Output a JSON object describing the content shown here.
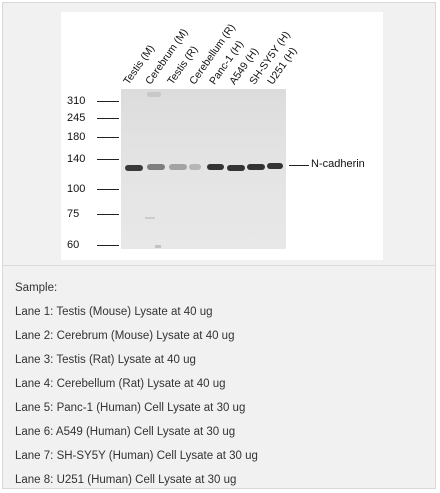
{
  "blot": {
    "lanes": [
      "Testis (M)",
      "Cerebrum (M)",
      "Testis (R)",
      "Cerebellum (R)",
      "Panc-1 (H)",
      "A549 (H)",
      "SH-SY5Y (H)",
      "U251 (H)"
    ],
    "markers": [
      "310",
      "245",
      "180",
      "140",
      "100",
      "75",
      "60"
    ],
    "target_label": "N-cadherin"
  },
  "caption": {
    "heading": "Sample:",
    "lines": [
      "Lane 1: Testis (Mouse) Lysate at 40 ug",
      "Lane 2: Cerebrum (Mouse) Lysate at 40 ug",
      "Lane 3: Testis (Rat) Lysate at 40 ug",
      "Lane 4: Cerebellum (Rat) Lysate at 40 ug",
      "Lane 5: Panc-1 (Human) Cell Lysate at 30 ug",
      "Lane 6: A549 (Human) Cell Lysate at 30 ug",
      "Lane 7: SH-SY5Y (Human) Cell Lysate at 30 ug",
      "Lane 8: U251 (Human) Cell Lysate at 30 ug"
    ]
  }
}
